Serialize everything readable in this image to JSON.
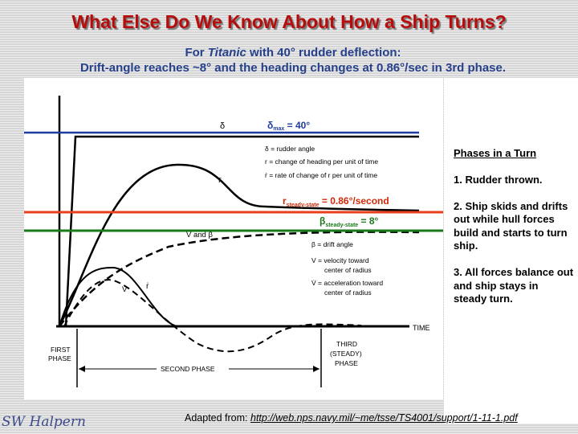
{
  "slide": {
    "title": "What Else Do We Know About How a Ship Turns?",
    "subtitle_prefix": "For ",
    "subtitle_ship": "Titanic",
    "subtitle_suffix": " with 40° rudder deflection:",
    "subtitle_line2": "Drift-angle reaches ~8° and the heading changes at 0.86°/sec in 3rd phase.",
    "credit_prefix": "Adapted from: ",
    "credit_url": "http://web.nps.navy.mil/~me/tsse/TS4001/support/1-11-1.pdf ",
    "signature": "SW Halpern"
  },
  "phases": {
    "heading": "Phases in a Turn",
    "items": [
      "1. Rudder thrown.",
      "2. Ship skids and drifts out while hull forces build and starts to turn ship.",
      "3. All forces balance out and ship stays in steady turn."
    ]
  },
  "diagram": {
    "delta_max_sym": "δ",
    "delta_max_sub": "max",
    "delta_max_val": " = 40°",
    "r_ss_sym": "r",
    "r_ss_sub": "steady-state",
    "r_ss_val": " = 0.86°/second",
    "beta_ss_sym": "β",
    "beta_ss_sub": "steady-state",
    "beta_ss_val": " = 8°",
    "legend1_delta": "δ = rudder angle",
    "legend1_r": "r = change of heading per unit of time",
    "legend1_rdot": "ṙ = rate of change of r per unit of time",
    "legend2_beta": "β = drift angle",
    "legend2_v1": "V = velocity toward",
    "legend2_v2": "center of radius",
    "legend2_vdot1": "V̇ = acceleration toward",
    "legend2_vdot2": "center of radius",
    "curve_delta": "δ",
    "curve_r": "r",
    "curve_vbeta": "V and β",
    "curve_v": "V",
    "curve_rdot": "ṙ",
    "axis_time": "TIME",
    "first_phase_1": "FIRST",
    "first_phase_2": "PHASE",
    "second_phase": "SECOND PHASE",
    "third_phase_1": "THIRD",
    "third_phase_2": "(STEADY)",
    "third_phase_3": "PHASE"
  }
}
